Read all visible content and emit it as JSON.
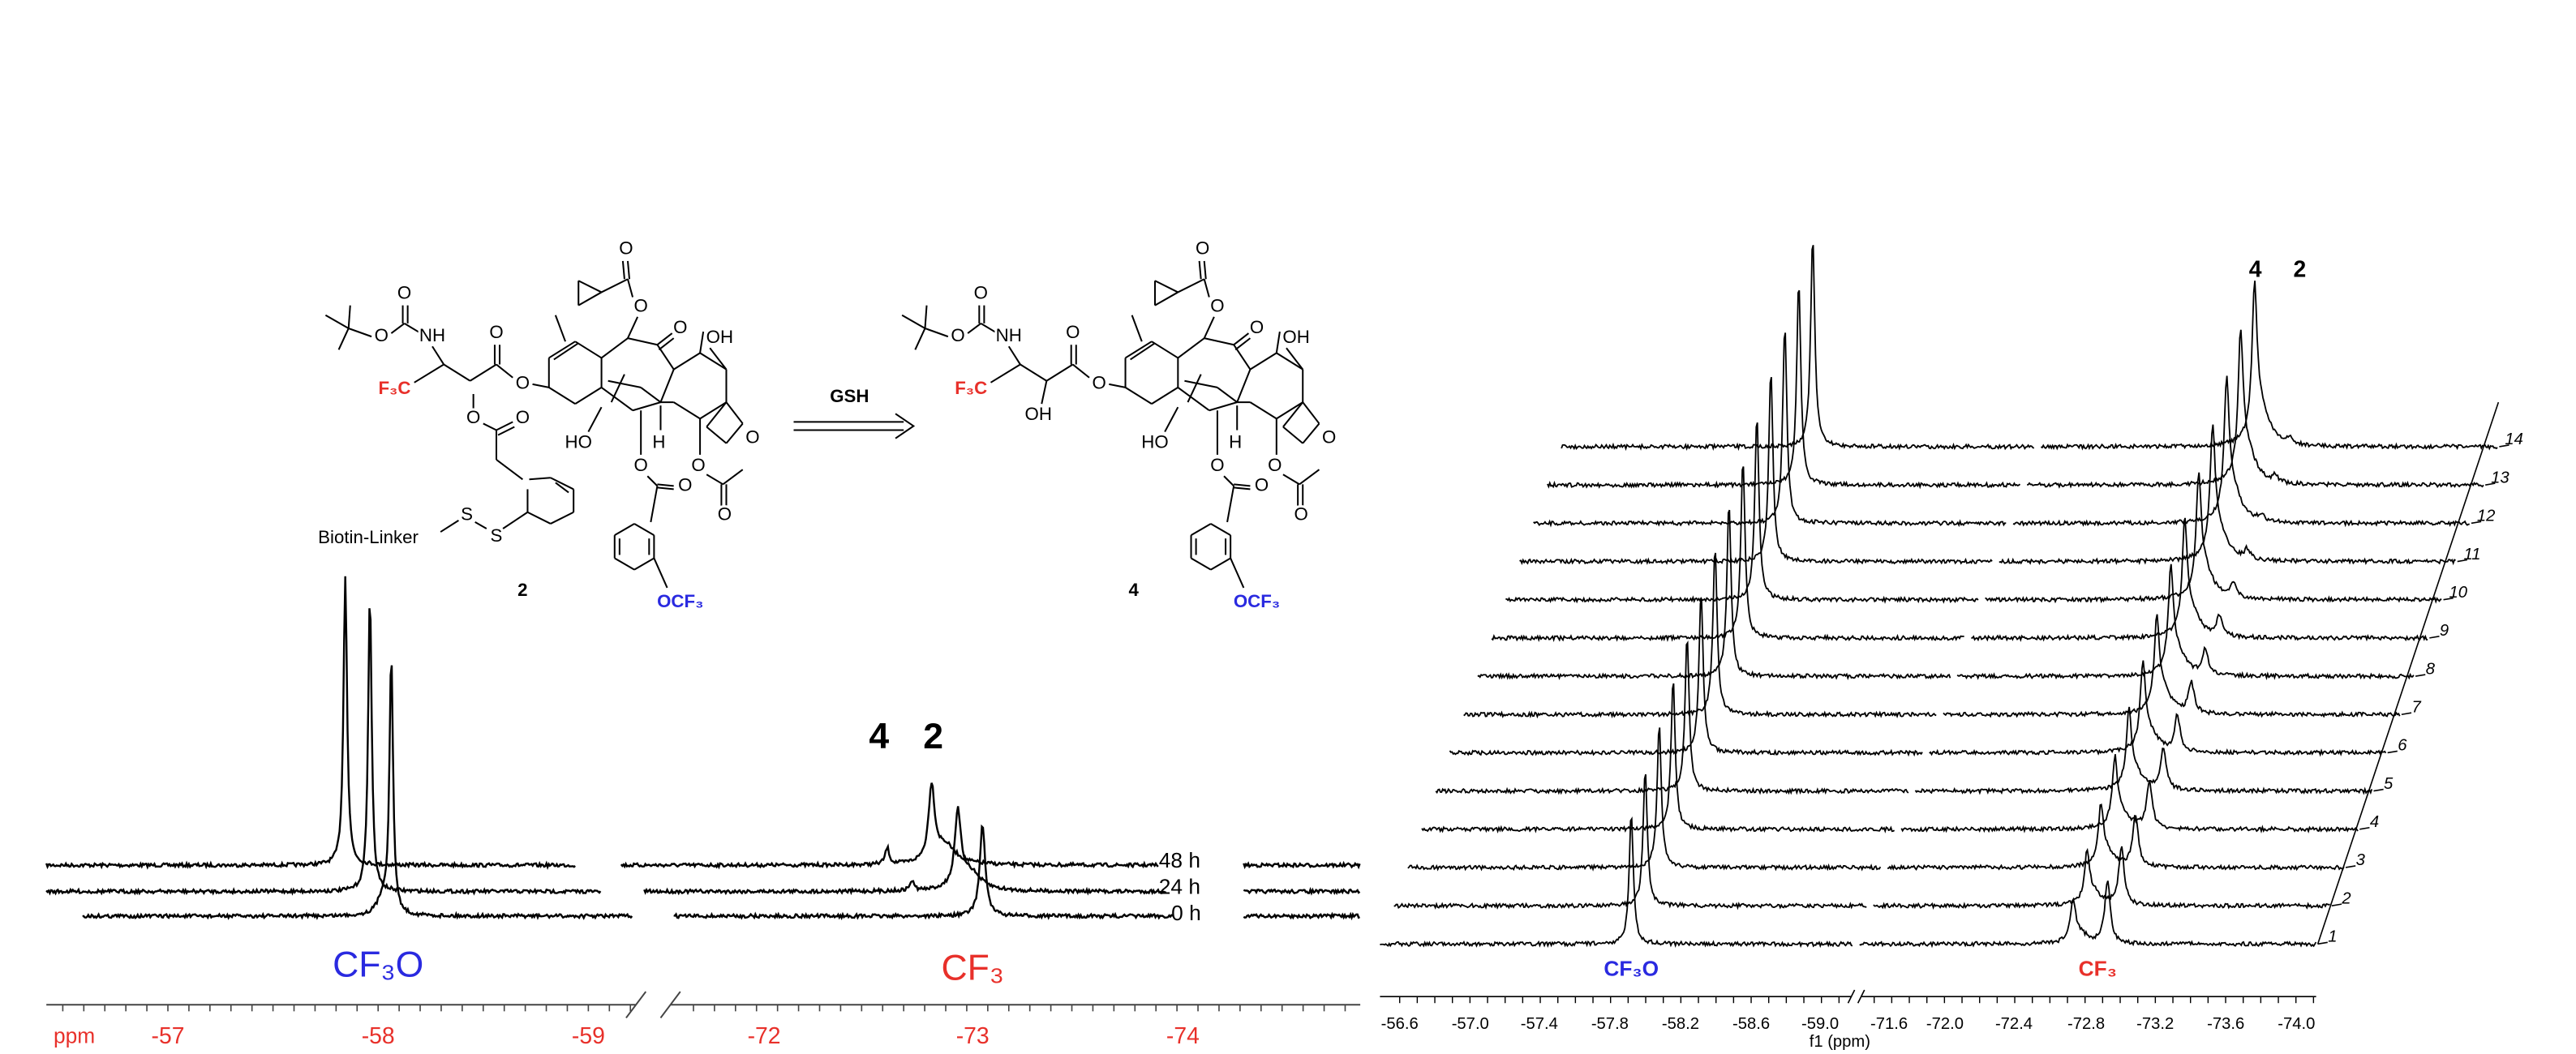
{
  "scheme": {
    "compound_2": {
      "label": "2",
      "atom_labels": [
        "O",
        "O",
        "NH",
        "F₃C",
        "O",
        "O",
        "O",
        "O",
        "S",
        "S",
        "Biotin-Linker",
        "O",
        "O",
        "O",
        "OH",
        "HO",
        "H",
        "O",
        "O",
        "O",
        "O",
        "O",
        "OCF₃"
      ]
    },
    "reagent": "GSH",
    "compound_4": {
      "label": "4",
      "atom_labels": [
        "O",
        "O",
        "NH",
        "F₃C",
        "O",
        "O",
        "OH",
        "O",
        "O",
        "O",
        "OH",
        "HO",
        "H",
        "O",
        "O",
        "O",
        "O",
        "O",
        "OCF₃"
      ]
    }
  },
  "left_panel": {
    "peak_labels": [
      "4",
      "2"
    ],
    "trace_labels": [
      "48 h",
      "24 h",
      "0 h"
    ],
    "group_labels": [
      "CF₃O",
      "CF₃"
    ],
    "axis": {
      "unit": "ppm",
      "tick_labels": [
        "-57",
        "-58",
        "-59",
        "-72",
        "-73",
        "-74"
      ]
    }
  },
  "right_panel": {
    "peak_labels": [
      "4",
      "2"
    ],
    "row_labels": [
      "1",
      "2",
      "3",
      "4",
      "5",
      "6",
      "7",
      "8",
      "9",
      "10",
      "11",
      "12",
      "13",
      "14"
    ],
    "group_labels": [
      "CF₃O",
      "CF₃"
    ],
    "axis": {
      "title": "f1 (ppm)",
      "tick_labels": [
        "-56.6",
        "-57.0",
        "-57.4",
        "-57.8",
        "-58.2",
        "-58.6",
        "-59.0",
        "-71.6",
        "-72.0",
        "-72.4",
        "-72.8",
        "-73.2",
        "-73.6",
        "-74.0"
      ]
    }
  }
}
